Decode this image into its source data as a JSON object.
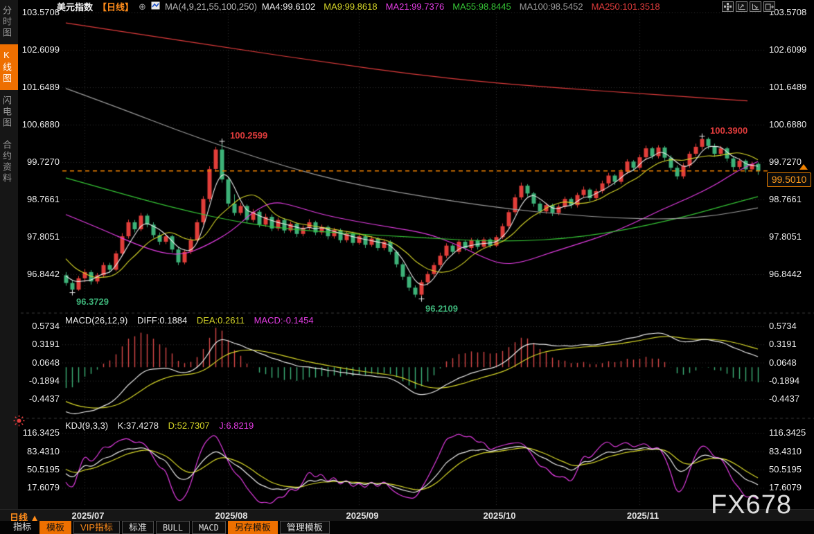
{
  "titlebar": {
    "symbol": "美元指数",
    "period_tag": "【日线】",
    "plus_icon": "⊕",
    "ma_param_label": "MA(4,9,21,55,100,250)",
    "ma_values": [
      {
        "label": "MA4:99.6102",
        "color": "#ececec"
      },
      {
        "label": "MA9:99.8618",
        "color": "#d6d628"
      },
      {
        "label": "MA21:99.7376",
        "color": "#e23ce2"
      },
      {
        "label": "MA55:98.8445",
        "color": "#35c435"
      },
      {
        "label": "MA100:98.5452",
        "color": "#9b9b9b"
      },
      {
        "label": "MA250:101.3518",
        "color": "#e03c3c"
      }
    ]
  },
  "toolbar_icons": [
    "layout-grid",
    "axis-scale-left",
    "axis-scale-right",
    "panel-expand"
  ],
  "sidebar": {
    "items": [
      {
        "label": "分时图",
        "active": false
      },
      {
        "label": "K线图",
        "active": true
      },
      {
        "label": "闪电图",
        "active": false
      },
      {
        "label": "合约资料",
        "active": false
      }
    ]
  },
  "axes": {
    "price_labels": [
      "103.5708",
      "102.6099",
      "101.6489",
      "100.6880",
      "99.7270",
      "98.7661",
      "97.8051",
      "96.8442"
    ],
    "macd_labels": [
      "0.5734",
      "0.3191",
      "0.0648",
      "-0.1894",
      "-0.4437"
    ],
    "kdj_labels": [
      "116.3425",
      "83.4310",
      "50.5195",
      "17.6079"
    ]
  },
  "macd_header": {
    "param": "MACD(26,12,9)",
    "diff_label": "DIFF:0.1884",
    "dea_label": "DEA:0.2611",
    "macd_label": "MACD:-0.1454"
  },
  "kdj_header": {
    "param": "KDJ(9,3,3)",
    "k_label": "K:37.4278",
    "d_label": "D:52.7307",
    "j_label": "J:6.8219"
  },
  "price_tag": {
    "value": "99.5010"
  },
  "annotations": [
    {
      "text": "96.3729",
      "index": 1,
      "price": 96.3729,
      "kind": "low",
      "color": "#3db278"
    },
    {
      "text": "100.2599",
      "index": 25,
      "price": 100.2599,
      "kind": "high",
      "color": "#e03c3c"
    },
    {
      "text": "96.2109",
      "index": 57,
      "price": 96.2109,
      "kind": "low",
      "color": "#3db278"
    },
    {
      "text": "100.3900",
      "index": 102,
      "price": 100.39,
      "kind": "high",
      "color": "#e03c3c"
    }
  ],
  "timeline": {
    "period": "日线",
    "arrow": "▲",
    "months": [
      {
        "label": "2025/07",
        "index": 3
      },
      {
        "label": "2025/08",
        "index": 26
      },
      {
        "label": "2025/09",
        "index": 47
      },
      {
        "label": "2025/10",
        "index": 69
      },
      {
        "label": "2025/11",
        "index": 92
      }
    ]
  },
  "tabs": [
    {
      "label": "指标",
      "style": "plain"
    },
    {
      "label": "模板",
      "style": "active"
    },
    {
      "label": "VIP指标",
      "style": "vip"
    },
    {
      "label": "标准",
      "style": "boxed"
    },
    {
      "label": "BULL",
      "style": "boxed mono"
    },
    {
      "label": "MACD",
      "style": "boxed mono"
    },
    {
      "label": "另存模板",
      "style": "active"
    },
    {
      "label": "管理模板",
      "style": "boxed"
    }
  ],
  "watermark": "FX678",
  "chart_data": {
    "type": "candlestick",
    "symbol": "美元指数",
    "period": "日线",
    "x_range": [
      "2025/06/26",
      "2025/11/28"
    ],
    "ylim_price": [
      95.95,
      103.75
    ],
    "price_axis": [
      103.5708,
      102.6099,
      101.6489,
      100.688,
      99.727,
      98.7661,
      97.8051,
      96.8442
    ],
    "current_price": 99.501,
    "high_52w": 100.39,
    "candles": [
      [
        96.82,
        96.9,
        96.55,
        96.62
      ],
      [
        96.62,
        96.7,
        96.3729,
        96.45
      ],
      [
        96.45,
        96.8,
        96.42,
        96.74
      ],
      [
        96.74,
        96.98,
        96.65,
        96.9
      ],
      [
        96.9,
        96.95,
        96.58,
        96.66
      ],
      [
        96.66,
        96.88,
        96.6,
        96.82
      ],
      [
        96.82,
        97.15,
        96.76,
        97.08
      ],
      [
        97.08,
        97.14,
        96.88,
        96.96
      ],
      [
        96.96,
        97.45,
        96.92,
        97.38
      ],
      [
        97.38,
        97.9,
        97.32,
        97.82
      ],
      [
        97.82,
        98.25,
        97.76,
        98.18
      ],
      [
        98.18,
        98.24,
        97.92,
        98.0
      ],
      [
        98.0,
        98.42,
        97.95,
        98.35
      ],
      [
        98.35,
        98.4,
        98.05,
        98.12
      ],
      [
        98.12,
        98.18,
        97.78,
        97.85
      ],
      [
        97.85,
        97.92,
        97.6,
        97.68
      ],
      [
        97.68,
        97.88,
        97.62,
        97.82
      ],
      [
        97.82,
        97.86,
        97.4,
        97.48
      ],
      [
        97.48,
        97.55,
        97.08,
        97.15
      ],
      [
        97.15,
        97.48,
        97.1,
        97.42
      ],
      [
        97.42,
        97.8,
        97.36,
        97.72
      ],
      [
        97.72,
        98.25,
        97.66,
        98.18
      ],
      [
        98.18,
        98.85,
        98.12,
        98.78
      ],
      [
        98.78,
        99.62,
        98.7,
        99.55
      ],
      [
        99.55,
        100.12,
        99.48,
        100.05
      ],
      [
        100.05,
        100.2599,
        99.2,
        99.28
      ],
      [
        99.28,
        99.35,
        98.58,
        98.66
      ],
      [
        98.66,
        98.9,
        98.35,
        98.42
      ],
      [
        98.42,
        98.68,
        98.36,
        98.6
      ],
      [
        98.6,
        98.64,
        98.16,
        98.24
      ],
      [
        98.24,
        98.52,
        98.18,
        98.45
      ],
      [
        98.45,
        98.5,
        98.05,
        98.12
      ],
      [
        98.12,
        98.4,
        98.06,
        98.32
      ],
      [
        98.32,
        98.38,
        97.95,
        98.02
      ],
      [
        98.02,
        98.3,
        97.96,
        98.24
      ],
      [
        98.24,
        98.28,
        97.9,
        97.97
      ],
      [
        97.97,
        98.2,
        97.92,
        98.14
      ],
      [
        98.14,
        98.18,
        97.8,
        97.88
      ],
      [
        97.88,
        98.1,
        97.82,
        98.04
      ],
      [
        98.04,
        98.26,
        97.98,
        98.18
      ],
      [
        98.18,
        98.22,
        97.85,
        97.92
      ],
      [
        97.92,
        98.12,
        97.86,
        98.06
      ],
      [
        98.06,
        98.1,
        97.74,
        97.82
      ],
      [
        97.82,
        98.04,
        97.76,
        97.98
      ],
      [
        97.98,
        98.02,
        97.65,
        97.72
      ],
      [
        97.72,
        97.95,
        97.66,
        97.9
      ],
      [
        97.9,
        97.94,
        97.58,
        97.65
      ],
      [
        97.65,
        97.88,
        97.6,
        97.82
      ],
      [
        97.82,
        97.86,
        97.52,
        97.6
      ],
      [
        97.6,
        97.82,
        97.55,
        97.76
      ],
      [
        97.76,
        97.8,
        97.45,
        97.52
      ],
      [
        97.52,
        97.74,
        97.46,
        97.68
      ],
      [
        97.68,
        97.72,
        97.35,
        97.42
      ],
      [
        97.42,
        97.46,
        97.02,
        97.1
      ],
      [
        97.1,
        97.15,
        96.7,
        96.78
      ],
      [
        96.78,
        96.84,
        96.42,
        96.5
      ],
      [
        96.5,
        96.56,
        96.25,
        96.32
      ],
      [
        96.32,
        96.7,
        96.2109,
        96.64
      ],
      [
        96.64,
        96.92,
        96.56,
        96.85
      ],
      [
        96.85,
        97.15,
        96.78,
        97.08
      ],
      [
        97.08,
        97.4,
        97.02,
        97.32
      ],
      [
        97.32,
        97.64,
        97.26,
        97.58
      ],
      [
        97.58,
        97.62,
        97.35,
        97.42
      ],
      [
        97.42,
        97.74,
        97.36,
        97.68
      ],
      [
        97.68,
        97.72,
        97.45,
        97.52
      ],
      [
        97.52,
        97.78,
        97.46,
        97.72
      ],
      [
        97.72,
        97.76,
        97.48,
        97.55
      ],
      [
        97.55,
        97.8,
        97.5,
        97.74
      ],
      [
        97.74,
        97.78,
        97.52,
        97.58
      ],
      [
        97.58,
        97.85,
        97.54,
        97.8
      ],
      [
        97.8,
        98.15,
        97.75,
        98.08
      ],
      [
        98.08,
        98.5,
        98.02,
        98.44
      ],
      [
        98.44,
        98.9,
        98.38,
        98.82
      ],
      [
        98.82,
        99.2,
        98.76,
        99.12
      ],
      [
        99.12,
        99.16,
        98.84,
        98.92
      ],
      [
        98.92,
        98.96,
        98.58,
        98.66
      ],
      [
        98.66,
        98.72,
        98.38,
        98.46
      ],
      [
        98.46,
        98.68,
        98.4,
        98.62
      ],
      [
        98.62,
        98.66,
        98.34,
        98.42
      ],
      [
        98.42,
        98.64,
        98.36,
        98.58
      ],
      [
        98.58,
        98.84,
        98.52,
        98.78
      ],
      [
        98.78,
        98.82,
        98.54,
        98.62
      ],
      [
        98.62,
        98.94,
        98.56,
        98.88
      ],
      [
        98.88,
        99.1,
        98.82,
        99.02
      ],
      [
        99.02,
        99.06,
        98.72,
        98.8
      ],
      [
        98.8,
        99.04,
        98.74,
        98.98
      ],
      [
        98.98,
        99.25,
        98.92,
        99.18
      ],
      [
        99.18,
        99.45,
        99.12,
        99.38
      ],
      [
        99.38,
        99.42,
        99.14,
        99.22
      ],
      [
        99.22,
        99.55,
        99.16,
        99.48
      ],
      [
        99.48,
        99.8,
        99.42,
        99.74
      ],
      [
        99.74,
        99.78,
        99.5,
        99.58
      ],
      [
        99.58,
        99.92,
        99.52,
        99.85
      ],
      [
        99.85,
        100.15,
        99.78,
        100.08
      ],
      [
        100.08,
        100.12,
        99.8,
        99.88
      ],
      [
        99.88,
        100.16,
        99.82,
        100.1
      ],
      [
        100.1,
        100.14,
        99.76,
        99.84
      ],
      [
        99.84,
        99.9,
        99.5,
        99.58
      ],
      [
        99.58,
        99.64,
        99.28,
        99.36
      ],
      [
        99.36,
        99.7,
        99.3,
        99.64
      ],
      [
        99.64,
        100.0,
        99.58,
        99.94
      ],
      [
        99.94,
        100.2,
        99.88,
        100.12
      ],
      [
        100.12,
        100.39,
        100.04,
        100.32
      ],
      [
        100.32,
        100.36,
        100.06,
        100.14
      ],
      [
        100.14,
        100.2,
        99.86,
        99.94
      ],
      [
        99.94,
        100.14,
        99.88,
        100.08
      ],
      [
        100.08,
        100.12,
        99.74,
        99.82
      ],
      [
        99.82,
        99.88,
        99.52,
        99.6
      ],
      [
        99.6,
        99.82,
        99.55,
        99.76
      ],
      [
        99.76,
        99.8,
        99.46,
        99.54
      ],
      [
        99.54,
        99.74,
        99.48,
        99.68
      ],
      [
        99.68,
        99.72,
        99.4,
        99.501
      ]
    ],
    "pre_closes": [
      99.42,
      99.3,
      99.18,
      99.05,
      98.95,
      99.02,
      98.9,
      98.78,
      98.66,
      98.74,
      98.6,
      98.88,
      98.7,
      98.52,
      98.35,
      98.18,
      98.0,
      97.82,
      97.6,
      97.38,
      97.15,
      96.95,
      96.85,
      96.8
    ],
    "computed_ma": [
      {
        "name": "MA4",
        "window": 4,
        "color": "#ececec"
      },
      {
        "name": "MA9",
        "window": 9,
        "color": "#d6d628"
      }
    ],
    "ma_overlays": [
      {
        "name": "MA21",
        "color": "#e23ce2",
        "points": [
          [
            0,
            98.38
          ],
          [
            0.05,
            98.02
          ],
          [
            0.1,
            97.62
          ],
          [
            0.14,
            97.38
          ],
          [
            0.17,
            97.35
          ],
          [
            0.2,
            97.55
          ],
          [
            0.24,
            97.95
          ],
          [
            0.27,
            98.45
          ],
          [
            0.3,
            98.72
          ],
          [
            0.33,
            98.6
          ],
          [
            0.37,
            98.38
          ],
          [
            0.42,
            98.2
          ],
          [
            0.47,
            98.05
          ],
          [
            0.52,
            97.9
          ],
          [
            0.56,
            97.65
          ],
          [
            0.6,
            97.3
          ],
          [
            0.63,
            97.1
          ],
          [
            0.66,
            97.15
          ],
          [
            0.7,
            97.4
          ],
          [
            0.74,
            97.62
          ],
          [
            0.78,
            97.85
          ],
          [
            0.82,
            98.15
          ],
          [
            0.86,
            98.5
          ],
          [
            0.9,
            98.8
          ],
          [
            0.94,
            99.15
          ],
          [
            0.97,
            99.5
          ],
          [
            1,
            99.74
          ]
        ]
      },
      {
        "name": "MA55",
        "color": "#35c435",
        "points": [
          [
            0,
            99.32
          ],
          [
            0.06,
            99.02
          ],
          [
            0.12,
            98.72
          ],
          [
            0.18,
            98.45
          ],
          [
            0.24,
            98.22
          ],
          [
            0.3,
            98.05
          ],
          [
            0.36,
            97.95
          ],
          [
            0.42,
            97.88
          ],
          [
            0.48,
            97.82
          ],
          [
            0.54,
            97.76
          ],
          [
            0.6,
            97.7
          ],
          [
            0.66,
            97.7
          ],
          [
            0.72,
            97.76
          ],
          [
            0.78,
            97.9
          ],
          [
            0.84,
            98.1
          ],
          [
            0.9,
            98.35
          ],
          [
            0.95,
            98.6
          ],
          [
            1,
            98.84
          ]
        ]
      },
      {
        "name": "MA100",
        "color": "#9b9b9b",
        "points": [
          [
            0,
            101.62
          ],
          [
            0.08,
            101.1
          ],
          [
            0.16,
            100.55
          ],
          [
            0.24,
            100.05
          ],
          [
            0.32,
            99.6
          ],
          [
            0.4,
            99.22
          ],
          [
            0.48,
            98.95
          ],
          [
            0.56,
            98.72
          ],
          [
            0.64,
            98.52
          ],
          [
            0.72,
            98.38
          ],
          [
            0.8,
            98.28
          ],
          [
            0.88,
            98.26
          ],
          [
            0.94,
            98.35
          ],
          [
            1,
            98.55
          ]
        ]
      },
      {
        "name": "MA250",
        "color": "#e03c3c",
        "points": [
          [
            0,
            103.3
          ],
          [
            0.12,
            102.98
          ],
          [
            0.25,
            102.62
          ],
          [
            0.38,
            102.28
          ],
          [
            0.5,
            101.98
          ],
          [
            0.62,
            101.76
          ],
          [
            0.72,
            101.62
          ],
          [
            0.82,
            101.5
          ],
          [
            0.9,
            101.4
          ],
          [
            0.985,
            101.3
          ]
        ]
      }
    ],
    "macd": {
      "params": [
        26,
        12,
        9
      ],
      "diff": 0.1884,
      "dea": 0.2611,
      "macd": -0.1454,
      "axis": [
        0.5734,
        0.3191,
        0.0648,
        -0.1894,
        -0.4437
      ],
      "colors": {
        "diff": "#ececec",
        "dea": "#d6d628",
        "bar_up": "#d94848",
        "bar_down": "#3db278"
      }
    },
    "kdj": {
      "params": [
        9,
        3,
        3
      ],
      "k": 37.4278,
      "d": 52.7307,
      "j": 6.8219,
      "axis": [
        116.3425,
        83.431,
        50.5195,
        17.6079
      ],
      "colors": {
        "k": "#ececec",
        "d": "#d6d628",
        "j": "#e23ce2"
      }
    },
    "colors": {
      "up": "#e23e3a",
      "down": "#3db278",
      "grid": "#333333",
      "separator": "#3c3c3c",
      "accent": "#f08200",
      "cross": "#e8e8e8"
    }
  }
}
